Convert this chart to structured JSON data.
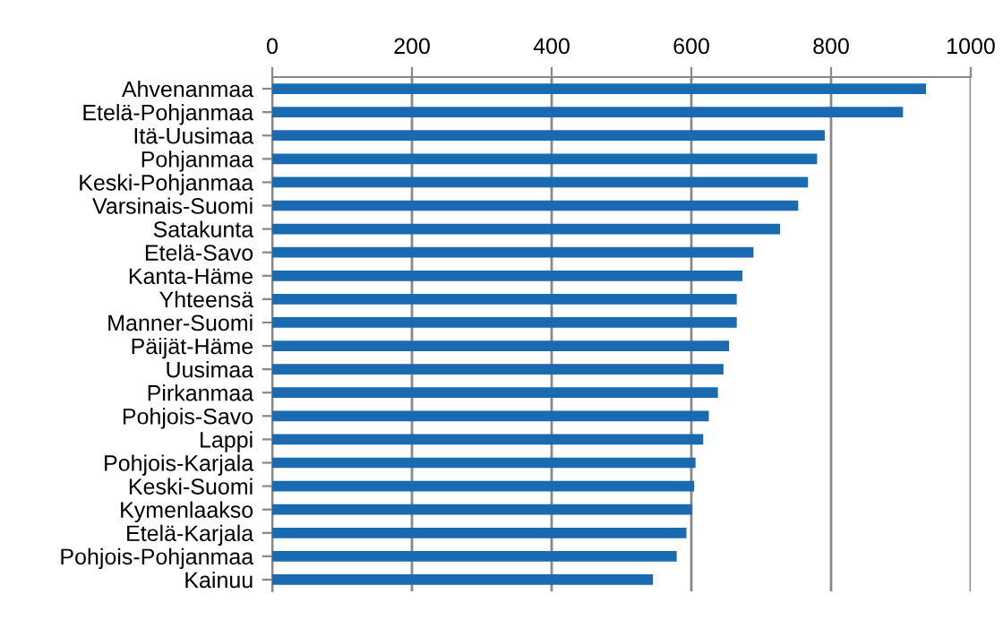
{
  "chart_data": {
    "type": "bar",
    "orientation": "horizontal",
    "categories": [
      "Ahvenanmaa",
      "Etelä-Pohjanmaa",
      "Itä-Uusimaa",
      "Pohjanmaa",
      "Keski-Pohjanmaa",
      "Varsinais-Suomi",
      "Satakunta",
      "Etelä-Savo",
      "Kanta-Häme",
      "Yhteensä",
      "Manner-Suomi",
      "Päijät-Häme",
      "Uusimaa",
      "Pirkanmaa",
      "Pohjois-Savo",
      "Lappi",
      "Pohjois-Karjala",
      "Keski-Suomi",
      "Kymenlaakso",
      "Etelä-Karjala",
      "Pohjois-Pohjanmaa",
      "Kainuu"
    ],
    "values": [
      936,
      903,
      791,
      780,
      767,
      753,
      727,
      689,
      673,
      665,
      665,
      654,
      646,
      638,
      625,
      617,
      606,
      604,
      601,
      593,
      579,
      545
    ],
    "color": "#1a6ab1",
    "xlim": [
      0,
      1000
    ],
    "xticks": [
      0,
      200,
      400,
      600,
      800,
      1000
    ],
    "grid": "x"
  }
}
